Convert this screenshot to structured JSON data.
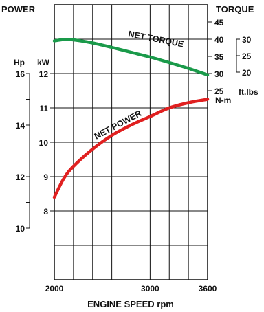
{
  "chart_data": {
    "type": "line",
    "title_left": "POWER",
    "title_right": "TORQUE",
    "xlabel": "ENGINE SPEED rpm",
    "x_range": [
      2000,
      3600
    ],
    "x_ticks": [
      {
        "value": 2000,
        "label": "2000"
      },
      {
        "value": 3000,
        "label": "3000"
      },
      {
        "value": 3600,
        "label": "3600"
      }
    ],
    "axes": {
      "power_kw": {
        "unit": "kW",
        "range": [
          8,
          12
        ],
        "ticks": [
          {
            "value": 12,
            "label": "12"
          },
          {
            "value": 11,
            "label": "11"
          },
          {
            "value": 10,
            "label": "10"
          },
          {
            "value": 9,
            "label": "9"
          },
          {
            "value": 8,
            "label": "8"
          }
        ]
      },
      "power_hp": {
        "unit": "Hp",
        "range": [
          10,
          16
        ],
        "ticks": [
          {
            "value": 16,
            "label": "16"
          },
          {
            "value": 15,
            "label": ""
          },
          {
            "value": 14,
            "label": "14"
          },
          {
            "value": 13,
            "label": ""
          },
          {
            "value": 12,
            "label": "12"
          },
          {
            "value": 11,
            "label": ""
          },
          {
            "value": 10,
            "label": "10"
          }
        ]
      },
      "torque_nm": {
        "unit": "N-m",
        "range": [
          25,
          45
        ],
        "ticks": [
          {
            "value": 45,
            "label": "45"
          },
          {
            "value": 40,
            "label": "40"
          },
          {
            "value": 35,
            "label": "35"
          },
          {
            "value": 30,
            "label": "30"
          },
          {
            "value": 25,
            "label": "25"
          }
        ]
      },
      "torque_ftlbs": {
        "unit": "ft.lbs",
        "range": [
          20,
          30
        ],
        "ticks": [
          {
            "value": 30,
            "label": "30"
          },
          {
            "value": 25,
            "label": "25"
          },
          {
            "value": 20,
            "label": "20"
          }
        ]
      }
    },
    "series": [
      {
        "name": "NET TORQUE",
        "color": "#1a9a4a",
        "axis": "torque_nm",
        "x": [
          2000,
          2100,
          2200,
          2400,
          2600,
          2800,
          3000,
          3200,
          3400,
          3600
        ],
        "y": [
          39.5,
          39.9,
          39.8,
          38.9,
          37.6,
          36.2,
          34.8,
          33.2,
          31.5,
          29.6
        ]
      },
      {
        "name": "NET POWER",
        "color": "#e02020",
        "axis": "power_kw",
        "x": [
          2000,
          2100,
          2200,
          2400,
          2600,
          2800,
          3000,
          3200,
          3400,
          3600
        ],
        "y": [
          8.4,
          8.95,
          9.3,
          9.8,
          10.2,
          10.5,
          10.75,
          11.0,
          11.15,
          11.25
        ]
      }
    ],
    "grid": true
  }
}
